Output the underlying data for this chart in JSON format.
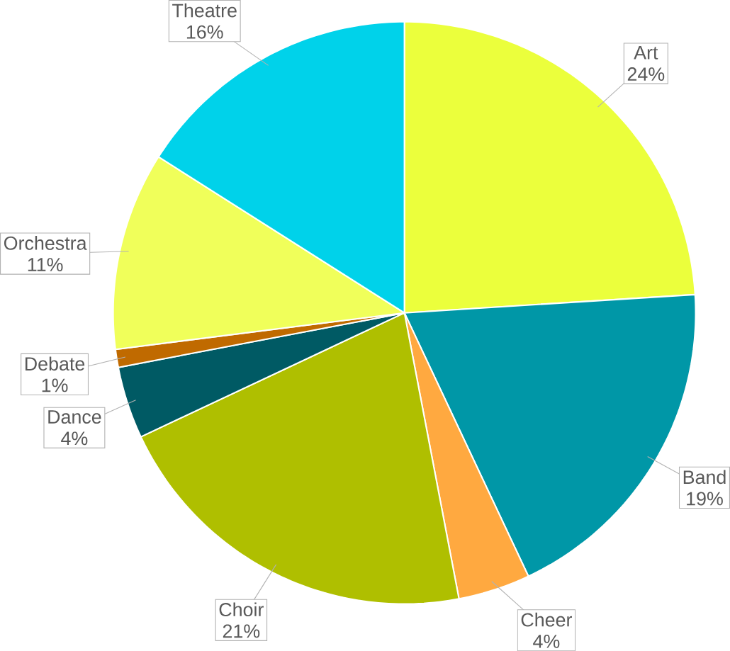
{
  "chart_data": {
    "type": "pie",
    "categories": [
      "Art",
      "Band",
      "Cheer",
      "Choir",
      "Dance",
      "Debate",
      "Orchestra",
      "Theatre"
    ],
    "values": [
      24,
      19,
      4,
      21,
      4,
      1,
      11,
      16
    ],
    "value_labels": [
      "24%",
      "19%",
      "4%",
      "21%",
      "4%",
      "1%",
      "11%",
      "16%"
    ],
    "colors": [
      "#ebff3c",
      "#0097a7",
      "#ffa940",
      "#afbf00",
      "#005a64",
      "#c06a00",
      "#f0ff5a",
      "#00d2ea"
    ]
  }
}
